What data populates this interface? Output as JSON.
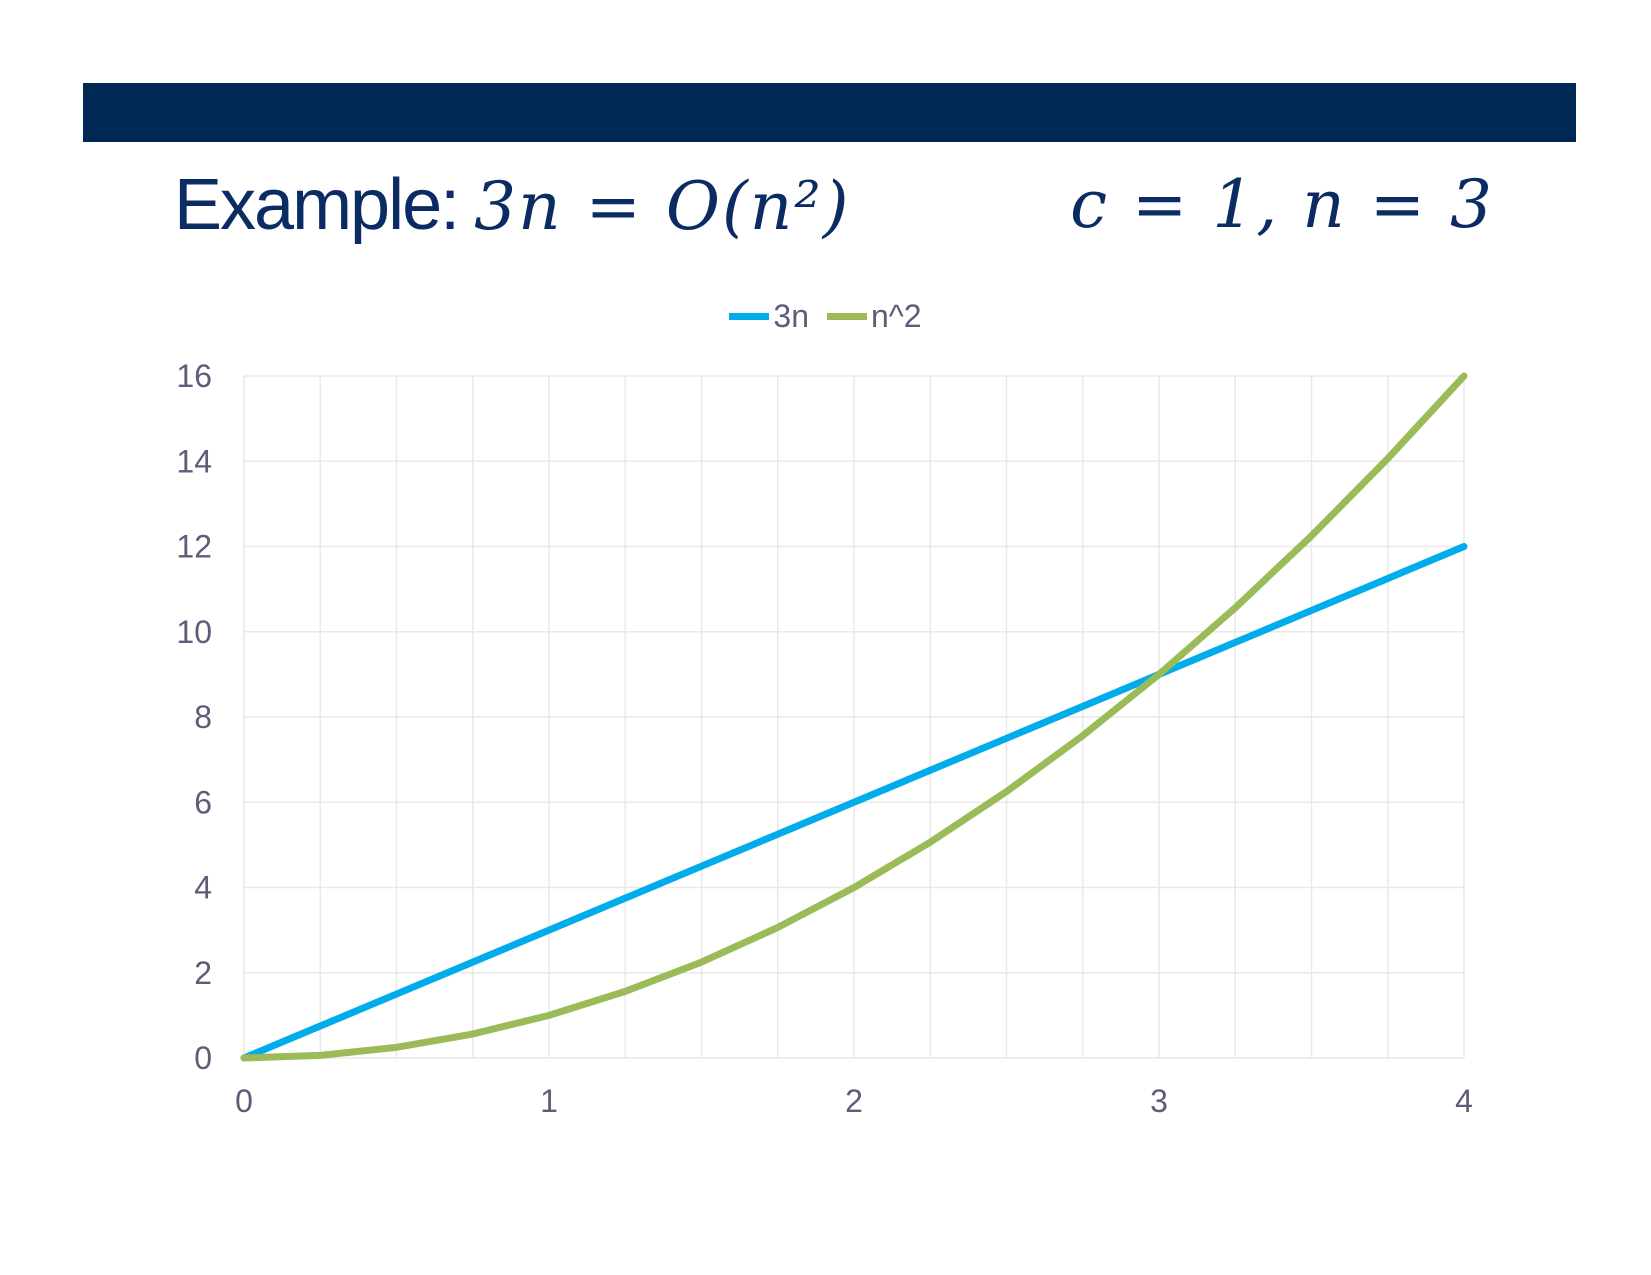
{
  "slide": {
    "title_label": "Example:",
    "title_math": "3n = O(n²)",
    "constants": "c = 1, n = 3",
    "bar_color": "#002855"
  },
  "chart_data": {
    "type": "line",
    "xlim": [
      0,
      4
    ],
    "ylim": [
      0,
      16
    ],
    "xticks": [
      0,
      1,
      2,
      3,
      4
    ],
    "yticks": [
      0,
      2,
      4,
      6,
      8,
      10,
      12,
      14,
      16
    ],
    "grid": true,
    "legend": "top-center",
    "series": [
      {
        "name": "3n",
        "color": "#00ACE9",
        "x": [
          0,
          0.25,
          0.5,
          0.75,
          1,
          1.25,
          1.5,
          1.75,
          2,
          2.25,
          2.5,
          2.75,
          3,
          3.25,
          3.5,
          3.75,
          4
        ],
        "y": [
          0,
          0.75,
          1.5,
          2.25,
          3,
          3.75,
          4.5,
          5.25,
          6,
          6.75,
          7.5,
          8.25,
          9,
          9.75,
          10.5,
          11.25,
          12
        ]
      },
      {
        "name": "n^2",
        "color": "#9BBB59",
        "x": [
          0,
          0.25,
          0.5,
          0.75,
          1,
          1.25,
          1.5,
          1.75,
          2,
          2.25,
          2.5,
          2.75,
          3,
          3.25,
          3.5,
          3.75,
          4
        ],
        "y": [
          0,
          0.0625,
          0.25,
          0.5625,
          1,
          1.5625,
          2.25,
          3.0625,
          4,
          5.0625,
          6.25,
          7.5625,
          9,
          10.5625,
          12.25,
          14.0625,
          16
        ]
      }
    ]
  }
}
